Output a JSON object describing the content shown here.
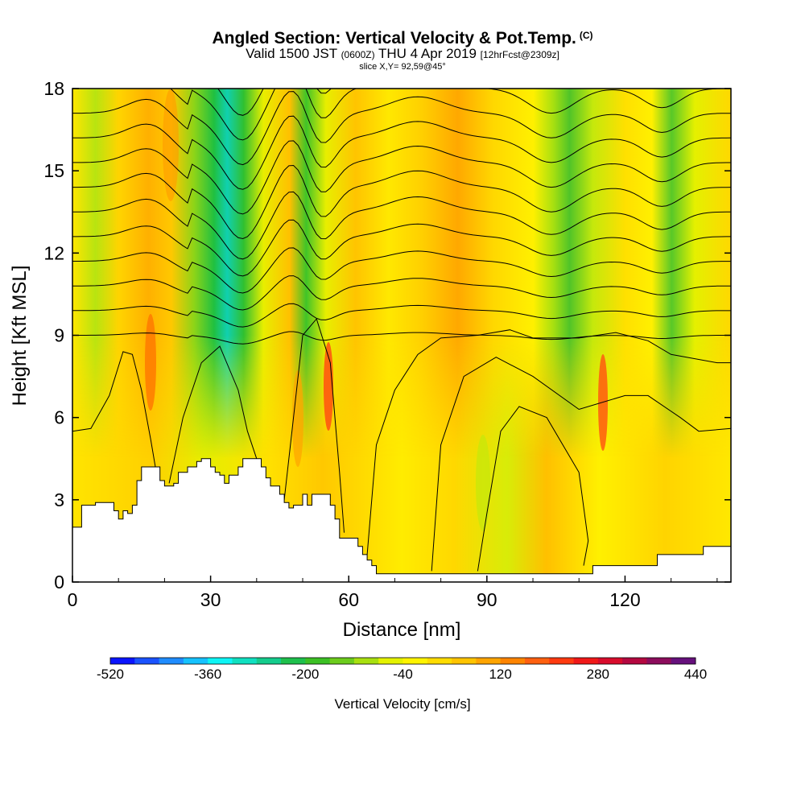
{
  "title": {
    "main": "Angled Section: Vertical Velocity & Pot.Temp.",
    "copyright": "(C)",
    "valid_prefix": "Valid 1500 JST",
    "valid_utc": "(0600Z)",
    "valid_date": "THU 4 Apr 2019",
    "forecast": "[12hrFcst@2309z]",
    "slice": "slice X,Y= 92,59@45°"
  },
  "chart_data": {
    "type": "heatmap",
    "xlabel": "Distance [nm]",
    "ylabel": "Height [Kft MSL]",
    "xlim": [
      0,
      143
    ],
    "ylim": [
      0,
      18
    ],
    "x_ticks": [
      0,
      30,
      60,
      90,
      120
    ],
    "y_ticks": [
      0,
      3,
      6,
      9,
      12,
      15,
      18
    ],
    "grid": false,
    "colorbar": {
      "label": "Vertical Velocity [cm/s]",
      "placement": "bottom",
      "tick_labels": [
        "-520",
        "-360",
        "-200",
        "-40",
        "120",
        "280",
        "440"
      ],
      "colors": [
        "#0a14ff",
        "#1a52ff",
        "#1f8cff",
        "#16c2ff",
        "#0ef5f5",
        "#10e0c0",
        "#14cc8c",
        "#1ec04c",
        "#3cc024",
        "#6ccc1c",
        "#a8e010",
        "#e4f200",
        "#fff400",
        "#ffdc00",
        "#ffc400",
        "#ffa400",
        "#ff8400",
        "#ff6010",
        "#ff3a10",
        "#f01818",
        "#d80c2c",
        "#b40840",
        "#8c0c5c",
        "#66107c"
      ]
    },
    "terrain_profile": [
      [
        0,
        2
      ],
      [
        2,
        2
      ],
      [
        2,
        2.8
      ],
      [
        5,
        2.8
      ],
      [
        5,
        2.9
      ],
      [
        9,
        2.9
      ],
      [
        9,
        2.6
      ],
      [
        10,
        2.6
      ],
      [
        10,
        2.3
      ],
      [
        11,
        2.3
      ],
      [
        11,
        2.6
      ],
      [
        12,
        2.6
      ],
      [
        12,
        2.5
      ],
      [
        13,
        2.5
      ],
      [
        13,
        2.8
      ],
      [
        14,
        2.8
      ],
      [
        14,
        3.7
      ],
      [
        15,
        3.7
      ],
      [
        15,
        4.2
      ],
      [
        19,
        4.2
      ],
      [
        19,
        3.7
      ],
      [
        20,
        3.7
      ],
      [
        20,
        3.5
      ],
      [
        22,
        3.5
      ],
      [
        22,
        3.6
      ],
      [
        23,
        3.6
      ],
      [
        23,
        4
      ],
      [
        25,
        4
      ],
      [
        25,
        4.2
      ],
      [
        27,
        4.2
      ],
      [
        27,
        4.4
      ],
      [
        28,
        4.4
      ],
      [
        28,
        4.5
      ],
      [
        30,
        4.5
      ],
      [
        30,
        4.2
      ],
      [
        31,
        4.2
      ],
      [
        31,
        4
      ],
      [
        32,
        4
      ],
      [
        32,
        3.9
      ],
      [
        33,
        3.9
      ],
      [
        33,
        3.6
      ],
      [
        34,
        3.6
      ],
      [
        34,
        3.9
      ],
      [
        36,
        3.9
      ],
      [
        36,
        4.2
      ],
      [
        37,
        4.2
      ],
      [
        37,
        4.5
      ],
      [
        41,
        4.5
      ],
      [
        41,
        4.2
      ],
      [
        42,
        4.2
      ],
      [
        42,
        3.8
      ],
      [
        43,
        3.8
      ],
      [
        43,
        3.5
      ],
      [
        45,
        3.5
      ],
      [
        45,
        3.2
      ],
      [
        46,
        3.2
      ],
      [
        46,
        2.9
      ],
      [
        47,
        2.9
      ],
      [
        47,
        2.7
      ],
      [
        48,
        2.7
      ],
      [
        48,
        2.8
      ],
      [
        50,
        2.8
      ],
      [
        50,
        3.2
      ],
      [
        51,
        3.2
      ],
      [
        51,
        2.8
      ],
      [
        52,
        2.8
      ],
      [
        52,
        3.2
      ],
      [
        56,
        3.2
      ],
      [
        56,
        2.8
      ],
      [
        57,
        2.8
      ],
      [
        57,
        2.3
      ],
      [
        58,
        2.3
      ],
      [
        58,
        1.6
      ],
      [
        62,
        1.6
      ],
      [
        62,
        1.3
      ],
      [
        63,
        1.3
      ],
      [
        63,
        1
      ],
      [
        64,
        1
      ],
      [
        64,
        0.8
      ],
      [
        65,
        0.8
      ],
      [
        65,
        0.6
      ],
      [
        66,
        0.6
      ],
      [
        66,
        0.3
      ],
      [
        113,
        0.3
      ],
      [
        113,
        0.6
      ],
      [
        127,
        0.6
      ],
      [
        127,
        1
      ],
      [
        137,
        1
      ],
      [
        137,
        1.3
      ],
      [
        143,
        1.3
      ]
    ]
  }
}
